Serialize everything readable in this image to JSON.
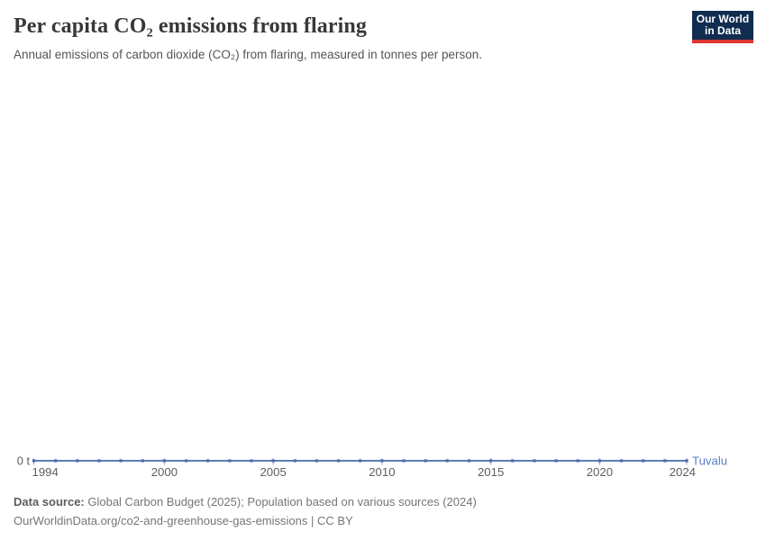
{
  "header": {
    "title": "Per capita CO₂ emissions from flaring",
    "subtitle": "Annual emissions of carbon dioxide (CO₂) from flaring, measured in tonnes per person."
  },
  "logo": {
    "line1": "Our World",
    "line2": "in Data",
    "bg_color": "#102d50",
    "accent_color": "#e0342f"
  },
  "chart_data": {
    "type": "line",
    "title": "Per capita CO₂ emissions from flaring",
    "entity": "Tuvalu",
    "unit": "t",
    "y_axis_zero_label": "0 t",
    "x": [
      1994,
      1995,
      1996,
      1997,
      1998,
      1999,
      2000,
      2001,
      2002,
      2003,
      2004,
      2005,
      2006,
      2007,
      2008,
      2009,
      2010,
      2011,
      2012,
      2013,
      2014,
      2015,
      2016,
      2017,
      2018,
      2019,
      2020,
      2021,
      2022,
      2023,
      2024
    ],
    "series": [
      {
        "name": "Tuvalu",
        "values": [
          0,
          0,
          0,
          0,
          0,
          0,
          0,
          0,
          0,
          0,
          0,
          0,
          0,
          0,
          0,
          0,
          0,
          0,
          0,
          0,
          0,
          0,
          0,
          0,
          0,
          0,
          0,
          0,
          0,
          0,
          0
        ],
        "color": "#4a6aa8"
      }
    ],
    "xticks": [
      1994,
      2000,
      2005,
      2010,
      2015,
      2020,
      2024
    ],
    "xlim": [
      1994,
      2024
    ],
    "ylim": [
      0,
      0
    ],
    "grid": false,
    "legend": "entity-label-at-line-end",
    "entity_label_color": "#5b7ec6",
    "axis_text_color": "#5e5e5e",
    "tick_mark_color": "#8fa0bd"
  },
  "footer": {
    "source_label": "Data source:",
    "source_text": " Global Carbon Budget (2025); Population based on various sources (2024)",
    "link": "OurWorldinData.org/co2-and-greenhouse-gas-emissions",
    "license": " | CC BY"
  }
}
